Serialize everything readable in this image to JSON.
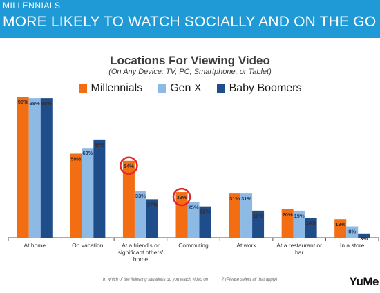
{
  "banner": {
    "eyebrow": "MILLENNIALS",
    "title": "MORE LIKELY TO WATCH SOCIALLY AND ON THE GO"
  },
  "colors": {
    "banner": "#1f9ad6",
    "millennials": "#f36d12",
    "genx": "#8db9e5",
    "boomers": "#1f4d8a",
    "highlight_circle": "#e32525"
  },
  "chart_data": {
    "type": "bar",
    "title": "Locations For Viewing Video",
    "subtitle": "(On Any Device: TV, PC, Smartphone, or Tablet)",
    "categories": [
      [
        "At home"
      ],
      [
        "On vacation"
      ],
      [
        "At a friend's or",
        "significant others'",
        "home"
      ],
      [
        "Commuting"
      ],
      [
        "At work"
      ],
      [
        "At a restaurant or",
        "bar"
      ],
      [
        "In a store"
      ]
    ],
    "series": [
      {
        "name": "Millennials",
        "values": [
          99,
          59,
          54,
          32,
          31,
          20,
          13
        ],
        "labels": [
          "99%",
          "59%",
          "54%",
          "32%",
          "31%",
          "20%",
          "13%"
        ]
      },
      {
        "name": "Gen X",
        "values": [
          98,
          63,
          33,
          25,
          31,
          19,
          8
        ],
        "labels": [
          "98%",
          "63%",
          "33%",
          "25%",
          "31%",
          "19%",
          "8%"
        ]
      },
      {
        "name": "Baby Boomers",
        "values": [
          98,
          69,
          27,
          22,
          19,
          14,
          3
        ],
        "labels": [
          "98%",
          "69%",
          "27%",
          "22%",
          "19%",
          "14%",
          "3%"
        ]
      }
    ],
    "highlighted": [
      {
        "category_index": 2,
        "series_index": 0
      },
      {
        "category_index": 3,
        "series_index": 0
      }
    ],
    "ylim": [
      0,
      100
    ],
    "grid": false,
    "legend_position": "top"
  },
  "footnote": "In which of the following situations do you watch video on______?  (Please select all that apply)",
  "logo": "YuMe"
}
